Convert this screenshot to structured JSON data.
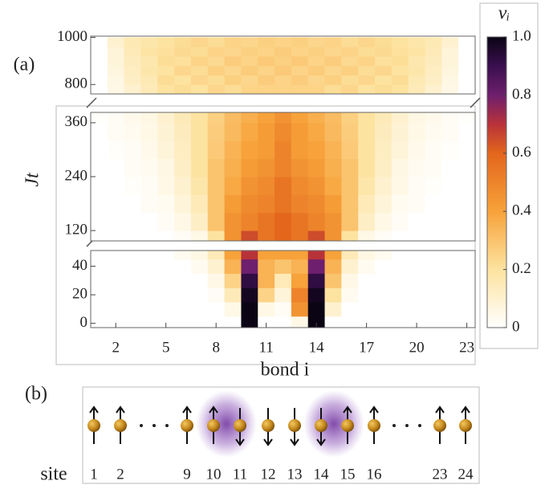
{
  "chart_data": {
    "type": "heatmap",
    "panel_label": "(a)",
    "ylabel": "Jt",
    "xlabel": "bond i",
    "x": [
      1,
      2,
      3,
      4,
      5,
      6,
      7,
      8,
      9,
      10,
      11,
      12,
      13,
      14,
      15,
      16,
      17,
      18,
      19,
      20,
      21,
      22,
      23
    ],
    "xlim": [
      0.5,
      23.5
    ],
    "xticks": [
      2,
      5,
      8,
      11,
      14,
      17,
      20,
      23
    ],
    "panels": [
      {
        "ylim": [
          760,
          1005
        ],
        "yticks": [
          800,
          1000
        ],
        "y": [
          780,
          820,
          860,
          900,
          940,
          980
        ],
        "z": [
          [
            0,
            0.05,
            0.1,
            0.15,
            0.2,
            0.22,
            0.2,
            0.24,
            0.22,
            0.25,
            0.25,
            0.25,
            0.25,
            0.25,
            0.22,
            0.24,
            0.2,
            0.22,
            0.2,
            0.15,
            0.1,
            0.05,
            0
          ],
          [
            0,
            0.06,
            0.12,
            0.16,
            0.22,
            0.2,
            0.24,
            0.22,
            0.26,
            0.24,
            0.27,
            0.25,
            0.27,
            0.24,
            0.26,
            0.22,
            0.24,
            0.2,
            0.22,
            0.16,
            0.12,
            0.06,
            0
          ],
          [
            0,
            0.07,
            0.13,
            0.18,
            0.2,
            0.24,
            0.22,
            0.26,
            0.24,
            0.27,
            0.25,
            0.28,
            0.25,
            0.27,
            0.24,
            0.26,
            0.22,
            0.24,
            0.2,
            0.18,
            0.13,
            0.07,
            0
          ],
          [
            0,
            0.08,
            0.14,
            0.17,
            0.22,
            0.21,
            0.25,
            0.23,
            0.27,
            0.25,
            0.28,
            0.26,
            0.28,
            0.25,
            0.27,
            0.23,
            0.25,
            0.21,
            0.22,
            0.17,
            0.14,
            0.08,
            0
          ],
          [
            0,
            0.08,
            0.15,
            0.19,
            0.21,
            0.23,
            0.22,
            0.25,
            0.24,
            0.26,
            0.25,
            0.27,
            0.25,
            0.26,
            0.24,
            0.25,
            0.22,
            0.23,
            0.21,
            0.19,
            0.15,
            0.08,
            0
          ],
          [
            0,
            0.1,
            0.16,
            0.18,
            0.2,
            0.22,
            0.24,
            0.22,
            0.25,
            0.24,
            0.26,
            0.25,
            0.26,
            0.24,
            0.25,
            0.22,
            0.24,
            0.22,
            0.2,
            0.18,
            0.16,
            0.1,
            0
          ]
        ]
      },
      {
        "ylim": [
          97,
          383
        ],
        "yticks": [
          120,
          240,
          360
        ],
        "y": [
          100,
          140,
          180,
          220,
          260,
          300,
          340,
          380
        ],
        "z": [
          [
            0,
            0,
            0,
            0,
            0,
            0.02,
            0.05,
            0.2,
            0.45,
            0.65,
            0.55,
            0.6,
            0.55,
            0.65,
            0.45,
            0.2,
            0.05,
            0.02,
            0,
            0,
            0,
            0,
            0
          ],
          [
            0,
            0,
            0,
            0,
            0.02,
            0.05,
            0.12,
            0.3,
            0.45,
            0.5,
            0.55,
            0.6,
            0.55,
            0.5,
            0.45,
            0.3,
            0.12,
            0.05,
            0.02,
            0,
            0,
            0,
            0
          ],
          [
            0,
            0,
            0,
            0.02,
            0.03,
            0.08,
            0.15,
            0.3,
            0.42,
            0.48,
            0.5,
            0.55,
            0.5,
            0.48,
            0.42,
            0.3,
            0.15,
            0.08,
            0.03,
            0.02,
            0,
            0,
            0
          ],
          [
            0,
            0,
            0.01,
            0.02,
            0.05,
            0.1,
            0.18,
            0.3,
            0.38,
            0.45,
            0.48,
            0.55,
            0.48,
            0.45,
            0.38,
            0.3,
            0.18,
            0.1,
            0.05,
            0.02,
            0.01,
            0,
            0
          ],
          [
            0,
            0,
            0.02,
            0.03,
            0.06,
            0.12,
            0.2,
            0.3,
            0.36,
            0.42,
            0.45,
            0.5,
            0.45,
            0.42,
            0.36,
            0.3,
            0.2,
            0.12,
            0.06,
            0.03,
            0.02,
            0,
            0
          ],
          [
            0,
            0.01,
            0.02,
            0.04,
            0.08,
            0.13,
            0.2,
            0.28,
            0.35,
            0.4,
            0.42,
            0.5,
            0.42,
            0.4,
            0.35,
            0.28,
            0.2,
            0.13,
            0.08,
            0.04,
            0.02,
            0.01,
            0
          ],
          [
            0,
            0.02,
            0.03,
            0.05,
            0.09,
            0.14,
            0.2,
            0.27,
            0.33,
            0.38,
            0.42,
            0.48,
            0.42,
            0.38,
            0.33,
            0.27,
            0.2,
            0.14,
            0.09,
            0.05,
            0.03,
            0.02,
            0
          ],
          [
            0.01,
            0.02,
            0.04,
            0.06,
            0.1,
            0.15,
            0.2,
            0.26,
            0.32,
            0.36,
            0.4,
            0.45,
            0.4,
            0.36,
            0.32,
            0.26,
            0.2,
            0.15,
            0.1,
            0.06,
            0.04,
            0.02,
            0.01
          ]
        ]
      },
      {
        "ylim": [
          -3,
          51
        ],
        "yticks": [
          0,
          20,
          40
        ],
        "y": [
          0,
          10,
          20,
          30,
          40,
          50
        ],
        "z": [
          [
            0,
            0,
            0,
            0,
            0,
            0,
            0,
            0,
            0,
            1,
            0,
            0,
            0.05,
            1,
            0,
            0,
            0,
            0,
            0,
            0,
            0,
            0,
            0
          ],
          [
            0,
            0,
            0,
            0,
            0,
            0,
            0,
            0,
            0.05,
            1,
            0.05,
            0.02,
            0.45,
            1,
            0.1,
            0,
            0,
            0,
            0,
            0,
            0,
            0,
            0
          ],
          [
            0,
            0,
            0,
            0,
            0,
            0,
            0,
            0.02,
            0.15,
            0.98,
            0.25,
            0.08,
            0.5,
            0.98,
            0.2,
            0.03,
            0,
            0,
            0,
            0,
            0,
            0,
            0
          ],
          [
            0,
            0,
            0,
            0,
            0,
            0,
            0,
            0.05,
            0.25,
            0.92,
            0.35,
            0.15,
            0.4,
            0.92,
            0.3,
            0.05,
            0,
            0,
            0,
            0,
            0,
            0,
            0
          ],
          [
            0,
            0,
            0,
            0,
            0,
            0,
            0.03,
            0.1,
            0.35,
            0.8,
            0.35,
            0.3,
            0.35,
            0.8,
            0.35,
            0.1,
            0.03,
            0,
            0,
            0,
            0,
            0,
            0
          ],
          [
            0,
            0,
            0,
            0,
            0,
            0.03,
            0.06,
            0.15,
            0.4,
            0.7,
            0.4,
            0.4,
            0.4,
            0.7,
            0.4,
            0.15,
            0.06,
            0.03,
            0,
            0,
            0,
            0,
            0
          ]
        ]
      }
    ],
    "colorbar": {
      "label": "νᵢ",
      "lim": [
        0,
        1
      ],
      "ticks": [
        0,
        0.2,
        0.4,
        0.6,
        0.8,
        {
          "value": 1,
          "label": "1.0"
        }
      ]
    },
    "colormap": [
      [
        0,
        "#ffffff"
      ],
      [
        0.2,
        "#fde3a0"
      ],
      [
        0.4,
        "#f7a23a"
      ],
      [
        0.6,
        "#e3661c"
      ],
      [
        0.7,
        "#b8323a"
      ],
      [
        0.8,
        "#6e1f6e"
      ],
      [
        0.9,
        "#3a0f4e"
      ],
      [
        1,
        "#0a0414"
      ]
    ]
  },
  "diagram": {
    "label": "(b)",
    "row_label": "site",
    "sites": [
      1,
      2,
      9,
      10,
      11,
      12,
      13,
      14,
      15,
      16,
      23,
      24
    ]
  }
}
